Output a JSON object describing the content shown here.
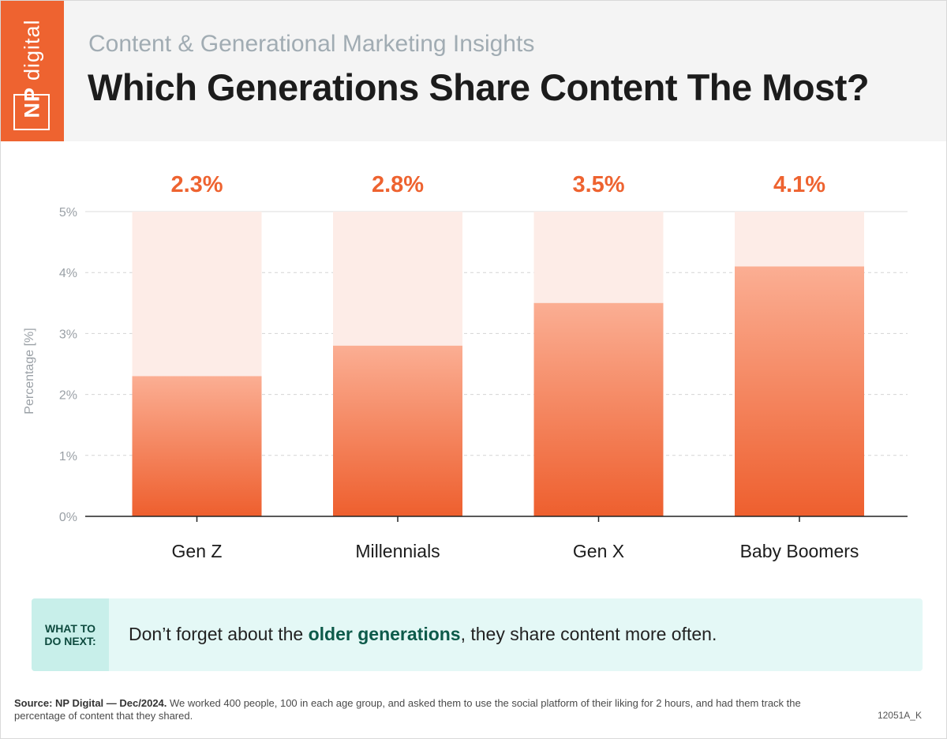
{
  "brand": {
    "logo_prefix": "NP",
    "logo_name": "digital",
    "accent_color": "#ee6330"
  },
  "header": {
    "subtitle": "Content & Generational Marketing Insights",
    "title": "Which Generations Share Content The Most?"
  },
  "chart_data": {
    "type": "bar",
    "categories": [
      "Gen Z",
      "Millennials",
      "Gen X",
      "Baby Boomers"
    ],
    "values": [
      2.3,
      2.8,
      3.5,
      4.1
    ],
    "value_labels": [
      "2.3%",
      "2.8%",
      "3.5%",
      "4.1%"
    ],
    "ylabel": "Percentage [%]",
    "ylim": [
      0,
      5
    ],
    "yticks": [
      "0%",
      "1%",
      "2%",
      "3%",
      "4%",
      "5%"
    ],
    "grid": true,
    "bar_color": "#ee6330",
    "track_color": "#fdece7"
  },
  "callout": {
    "tag": "WHAT TO\nDO NEXT:",
    "text_before": "Don’t forget about the ",
    "text_bold": "older generations",
    "text_after": ", they share content more often."
  },
  "footer": {
    "source_label": "Source:  NP Digital — Dec/2024.",
    "source_text": " We worked 400 people, 100 in each age group, and asked them to use the social platform of their liking for 2 hours, and had them track the percentage of content that they shared.",
    "code": "12051A_K"
  }
}
